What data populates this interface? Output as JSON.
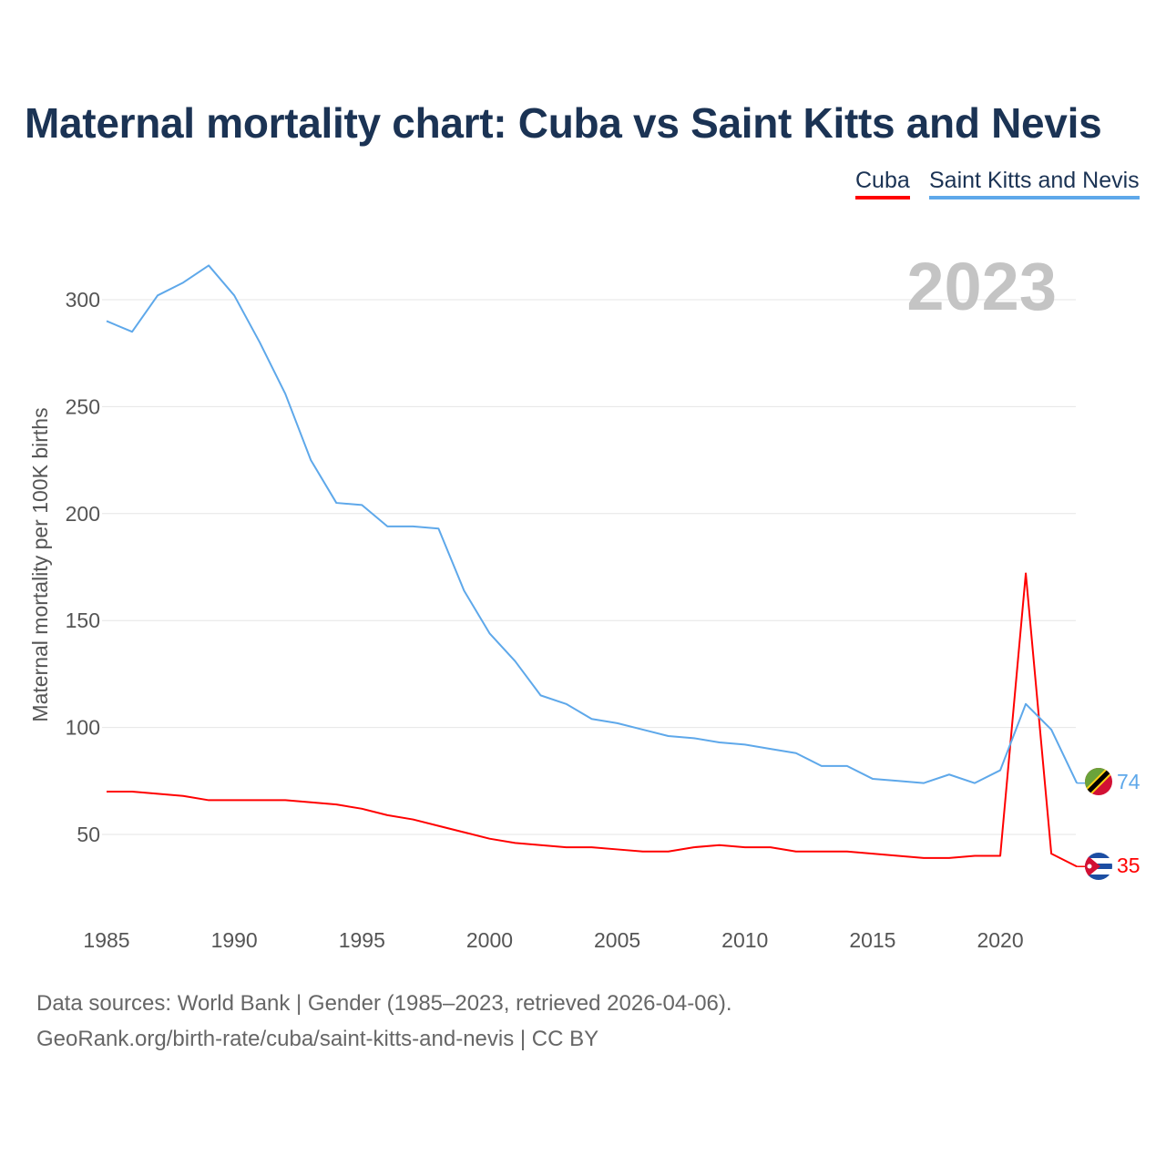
{
  "chart_data": {
    "type": "line",
    "title": "Maternal mortality chart: Cuba vs Saint Kitts and Nevis",
    "ylabel": "Maternal mortality per 100K births",
    "xlabel": "",
    "year_label": "2023",
    "ylim": [
      0,
      330
    ],
    "xlim": [
      1985,
      2023
    ],
    "yticks": [
      50,
      100,
      150,
      200,
      250,
      300
    ],
    "xticks": [
      1985,
      1990,
      1995,
      2000,
      2005,
      2010,
      2015,
      2020
    ],
    "grid": true,
    "legend_position": "top-right",
    "x": [
      1985,
      1986,
      1987,
      1988,
      1989,
      1990,
      1991,
      1992,
      1993,
      1994,
      1995,
      1996,
      1997,
      1998,
      1999,
      2000,
      2001,
      2002,
      2003,
      2004,
      2005,
      2006,
      2007,
      2008,
      2009,
      2010,
      2011,
      2012,
      2013,
      2014,
      2015,
      2016,
      2017,
      2018,
      2019,
      2020,
      2021,
      2022,
      2023
    ],
    "series": [
      {
        "name": "Cuba",
        "color": "#ff0000",
        "end_label": "35",
        "values": [
          70,
          70,
          69,
          68,
          66,
          66,
          66,
          66,
          65,
          64,
          62,
          59,
          57,
          54,
          51,
          48,
          46,
          45,
          44,
          44,
          43,
          42,
          42,
          44,
          45,
          44,
          44,
          42,
          42,
          42,
          41,
          40,
          39,
          39,
          40,
          40,
          172,
          41,
          35
        ]
      },
      {
        "name": "Saint Kitts and Nevis",
        "color": "#5ea8ea",
        "end_label": "74",
        "values": [
          290,
          285,
          302,
          308,
          316,
          302,
          280,
          256,
          225,
          205,
          204,
          194,
          194,
          193,
          164,
          144,
          131,
          115,
          111,
          104,
          102,
          99,
          96,
          95,
          93,
          92,
          90,
          88,
          82,
          82,
          76,
          75,
          74,
          78,
          74,
          80,
          111,
          99,
          74
        ]
      }
    ]
  },
  "footer": {
    "line1": "Data sources: World Bank | Gender (1985–2023, retrieved 2026-04-06).",
    "line2": "GeoRank.org/birth-rate/cuba/saint-kitts-and-nevis | CC BY"
  }
}
